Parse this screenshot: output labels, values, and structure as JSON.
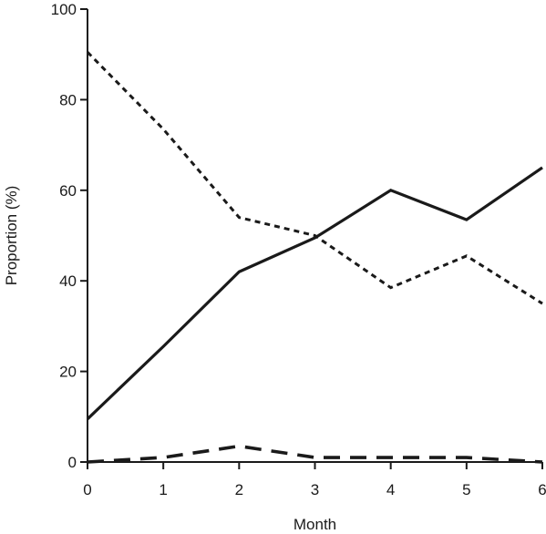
{
  "chart_data": {
    "type": "line",
    "title": "",
    "xlabel": "Month",
    "ylabel": "Proportion (%)",
    "x": [
      0,
      1,
      2,
      3,
      4,
      5,
      6
    ],
    "xlim": [
      0,
      6
    ],
    "ylim": [
      0,
      100
    ],
    "xticks": [
      "0",
      "1",
      "2",
      "3",
      "4",
      "5",
      "6"
    ],
    "yticks": [
      "0",
      "20",
      "40",
      "60",
      "80",
      "100"
    ],
    "grid": false,
    "legend": "none",
    "series": [
      {
        "style": "solid",
        "color": "#1a1a1a",
        "values": [
          9.5,
          25.5,
          42,
          49.5,
          60,
          53.5,
          65
        ]
      },
      {
        "style": "dotted",
        "color": "#1a1a1a",
        "values": [
          90.5,
          73.5,
          54,
          50,
          38.5,
          45.5,
          35
        ]
      },
      {
        "style": "dashed",
        "color": "#1a1a1a",
        "values": [
          0,
          1,
          3.5,
          1,
          1,
          1,
          0
        ]
      }
    ]
  }
}
